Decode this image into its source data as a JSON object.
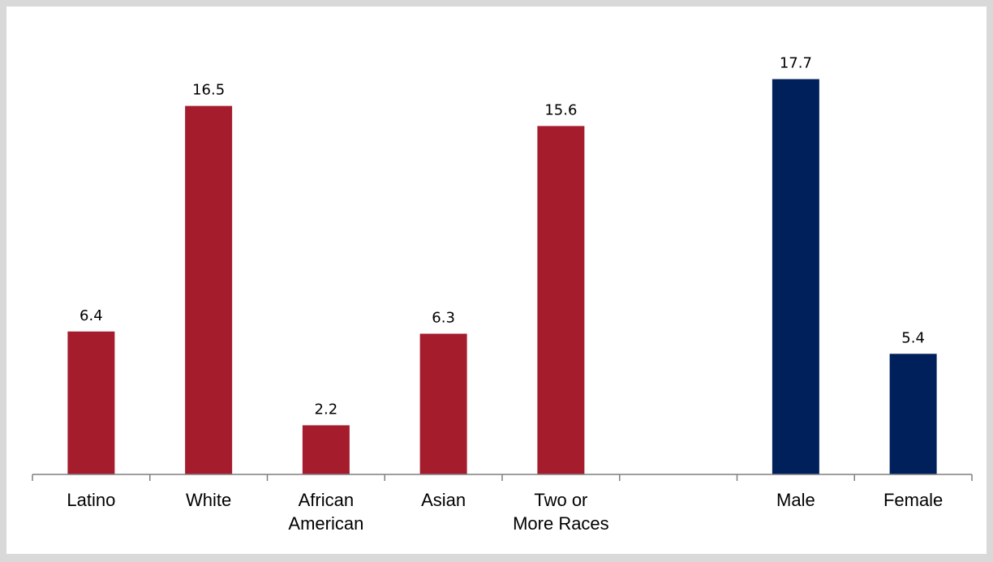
{
  "chart_data": {
    "type": "bar",
    "title": "",
    "xlabel": "",
    "ylabel": "",
    "ylim": [
      0,
      19.5
    ],
    "grid": false,
    "legend": "none",
    "categories": [
      [
        "Latino"
      ],
      [
        "White"
      ],
      [
        "African",
        "American"
      ],
      [
        "Asian"
      ],
      [
        "Two or",
        "More Races"
      ],
      [
        ""
      ],
      [
        "Male"
      ],
      [
        "Female"
      ]
    ],
    "values": [
      6.4,
      16.5,
      2.2,
      6.3,
      15.6,
      null,
      17.7,
      5.4
    ],
    "data_labels": [
      "6.4",
      "16.5",
      "2.2",
      "6.3",
      "15.6",
      "",
      "17.7",
      "5.4"
    ],
    "colors": [
      "#a51d2d",
      "#a51d2d",
      "#a51d2d",
      "#a51d2d",
      "#a51d2d",
      "#a51d2d",
      "#00205b",
      "#00205b"
    ]
  }
}
